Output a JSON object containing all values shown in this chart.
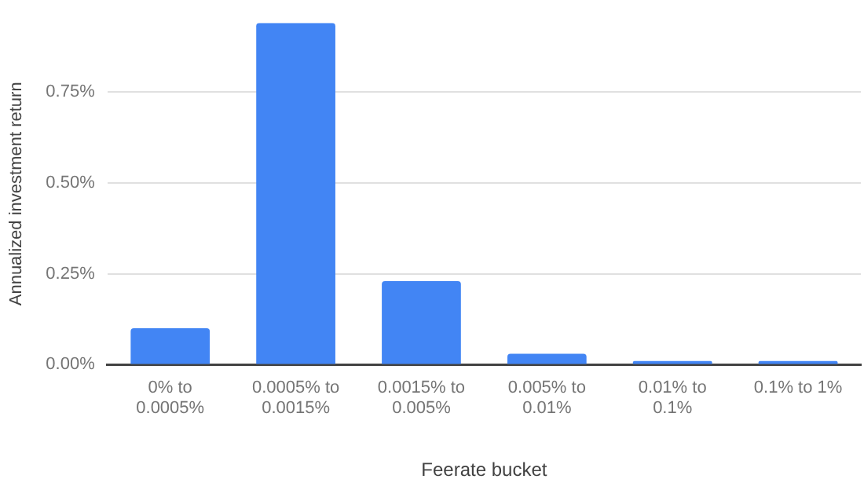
{
  "chart_data": {
    "type": "bar",
    "xlabel": "Feerate bucket",
    "ylabel": "Annualized investment return",
    "categories": [
      "0% to 0.0005%",
      "0.0005% to 0.0015%",
      "0.0015% to 0.005%",
      "0.005% to 0.01%",
      "0.01% to 0.1%",
      "0.1% to 1%"
    ],
    "values": [
      0.1,
      0.94,
      0.23,
      0.03,
      0.01,
      0.01
    ],
    "color": "#4285f4",
    "ylim": [
      0,
      0.94
    ],
    "yticks": [
      {
        "value": 0,
        "label": "0.00%"
      },
      {
        "value": 0.25,
        "label": "0.25%"
      },
      {
        "value": 0.5,
        "label": "0.50%"
      },
      {
        "value": 0.75,
        "label": "0.75%"
      }
    ],
    "grid": "y",
    "legend": false
  }
}
